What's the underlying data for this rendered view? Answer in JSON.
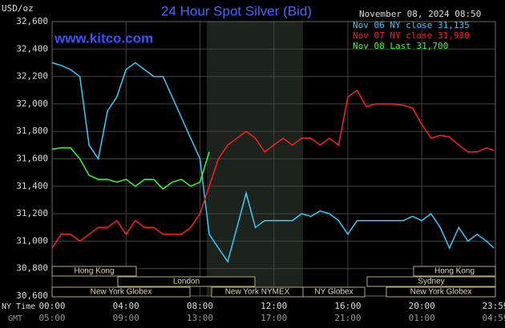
{
  "chart_data": {
    "type": "line",
    "title": "24 Hour Spot Silver (Bid)",
    "y_label": "USD/oz",
    "watermark": "www.kitco.com",
    "timestamp": "November 08, 2024 08:50",
    "x": [
      0,
      0.5,
      1,
      1.5,
      2,
      2.5,
      3,
      3.5,
      4,
      4.5,
      5,
      5.5,
      6,
      6.5,
      7,
      7.5,
      8,
      8.5,
      9,
      9.5,
      10,
      10.5,
      11,
      11.5,
      12,
      12.5,
      13,
      13.5,
      14,
      14.5,
      15,
      15.5,
      16,
      16.5,
      17,
      17.5,
      18,
      18.5,
      19,
      19.5,
      20,
      20.5,
      21,
      21.5,
      22,
      22.5,
      23,
      23.5,
      23.9
    ],
    "series": [
      {
        "name": "Nov 06 NY close 31,135",
        "color": "#33ccff",
        "values": [
          32300,
          32280,
          32250,
          32200,
          31700,
          31600,
          31950,
          32050,
          32250,
          32300,
          32250,
          32200,
          32200,
          32050,
          31900,
          31750,
          31600,
          31050,
          30950,
          30850,
          31100,
          31350,
          31100,
          31150,
          31150,
          31150,
          31150,
          31200,
          31180,
          31220,
          31200,
          31150,
          31050,
          31150,
          31150,
          31150,
          31150,
          31150,
          31150,
          31180,
          31150,
          31200,
          31100,
          30950,
          31100,
          31000,
          31050,
          31000,
          30950
        ]
      },
      {
        "name": "Nov 07 NY close 31,980",
        "color": "#ff2020",
        "values": [
          30950,
          31050,
          31050,
          31000,
          31050,
          31100,
          31100,
          31150,
          31050,
          31150,
          31100,
          31100,
          31050,
          31050,
          31050,
          31100,
          31200,
          31400,
          31600,
          31700,
          31750,
          31800,
          31750,
          31650,
          31700,
          31750,
          31700,
          31750,
          31750,
          31700,
          31750,
          31700,
          32050,
          32100,
          31980,
          32000,
          32000,
          32000,
          31990,
          31970,
          31850,
          31750,
          31770,
          31760,
          31700,
          31650,
          31650,
          31680,
          31660
        ]
      },
      {
        "name": "Nov 08 Last 31,700",
        "color": "#33ff33",
        "values": [
          31670,
          31680,
          31680,
          31600,
          31480,
          31450,
          31450,
          31430,
          31450,
          31400,
          31450,
          31450,
          31380,
          31430,
          31450,
          31400,
          31430,
          31650,
          null,
          null,
          null,
          null,
          null,
          null,
          null,
          null,
          null,
          null,
          null,
          null,
          null,
          null,
          null,
          null,
          null,
          null,
          null,
          null,
          null,
          null,
          null,
          null,
          null,
          null,
          null,
          null,
          null,
          null,
          null
        ]
      }
    ],
    "xlim": [
      0,
      23.983
    ],
    "xticks": [
      {
        "value": 0,
        "label": "00:00"
      },
      {
        "value": 4,
        "label": "04:00"
      },
      {
        "value": 8,
        "label": "08:00"
      },
      {
        "value": 12,
        "label": "12:00"
      },
      {
        "value": 16,
        "label": "16:00"
      },
      {
        "value": 20,
        "label": "20:00"
      },
      {
        "value": 23.983,
        "label": "23:59"
      }
    ],
    "gmt_tick_labels": [
      "05:00",
      "09:00",
      "13:00",
      "17:00",
      "21:00",
      "01:00",
      "04:59"
    ],
    "xtick_rows": [
      "NY Time",
      "GMT"
    ],
    "ylim": [
      30600,
      32600
    ],
    "yticks": [
      {
        "value": 30600,
        "label": "30,600"
      },
      {
        "value": 30800,
        "label": "30,800"
      },
      {
        "value": 31000,
        "label": "31,000"
      },
      {
        "value": 31200,
        "label": "31,200"
      },
      {
        "value": 31400,
        "label": "31,400"
      },
      {
        "value": 31600,
        "label": "31,600"
      },
      {
        "value": 31800,
        "label": "31,800"
      },
      {
        "value": 32000,
        "label": "32,000"
      },
      {
        "value": 32200,
        "label": "32,200"
      },
      {
        "value": 32400,
        "label": "32,400"
      },
      {
        "value": 32600,
        "label": "32,600"
      }
    ],
    "grid": true,
    "sessions": [
      "Hong Kong",
      "Hong Kong",
      "London",
      "Sydney",
      "New York Globex",
      "New York NYMEX",
      "NY Globex",
      "New York Globex"
    ]
  }
}
